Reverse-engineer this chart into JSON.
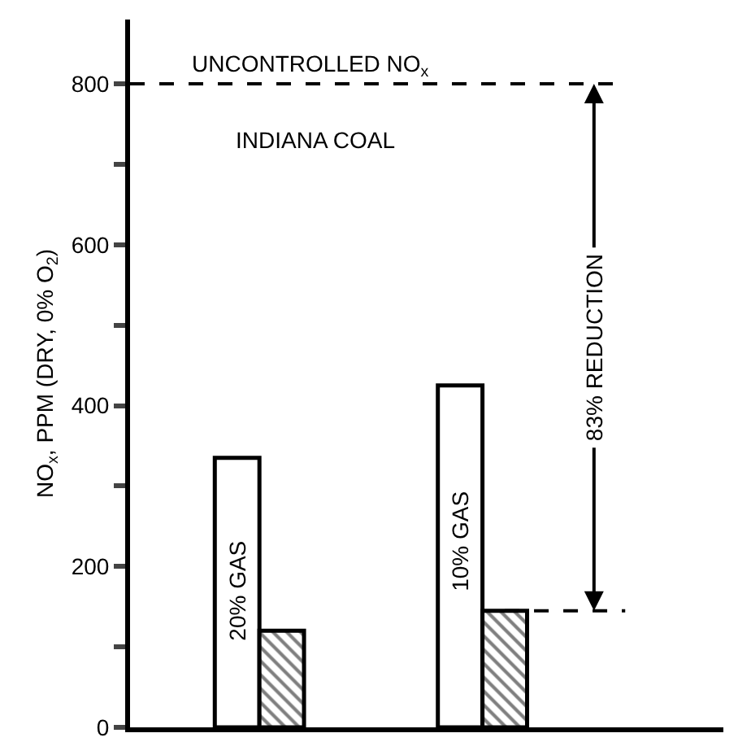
{
  "chart_data": {
    "type": "bar",
    "ylabel": "NO$_{x}$, PPM (DRY, 0% O$_{2}$)",
    "categories": [
      null,
      null
    ],
    "series": [
      {
        "color": "#ffffff",
        "values": [
          335,
          425
        ]
      },
      {
        "color": "#000000",
        "values": [
          120,
          145
        ]
      }
    ],
    "ylim": [
      0,
      880
    ],
    "yticks": [
      0,
      {
        "value": 100,
        "label": null
      },
      200,
      {
        "value": 300,
        "label": null
      },
      400,
      {
        "value": 500,
        "label": null
      },
      600,
      {
        "value": 700,
        "label": null
      },
      800
    ],
    "ref_lines": [
      {
        "axis": "y",
        "value": 800,
        "label": "UNCONTROLLED NO$_{x}$",
        "line_style": "dashed"
      },
      {
        "axis": "y",
        "value": 145,
        "line_style": "dashed"
      }
    ],
    "annotations": [
      "INDIANA COAL",
      "20% GAS",
      "10% GAS",
      "83% REDUCTION"
    ]
  }
}
